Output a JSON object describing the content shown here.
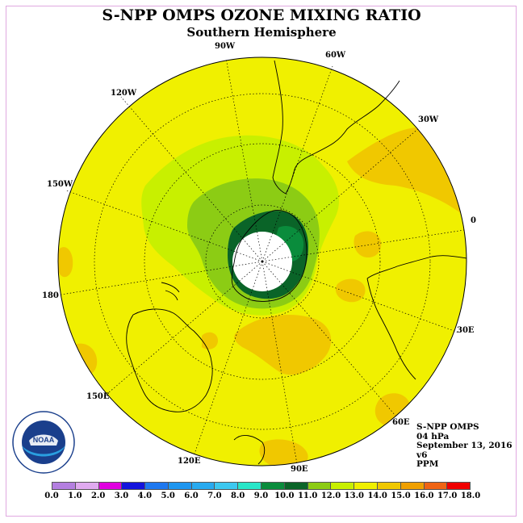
{
  "title": "S-NPP OMPS OZONE MIXING RATIO",
  "subtitle": "Southern Hemisphere",
  "longitude_labels": {
    "lbl_90w": "90W",
    "lbl_60w": "60W",
    "lbl_120w": "120W",
    "lbl_30w": "30W",
    "lbl_150w": "150W",
    "lbl_0": "0",
    "lbl_180": "180",
    "lbl_30e": "30E",
    "lbl_150e": "150E",
    "lbl_60e": "60E",
    "lbl_120e": "120E",
    "lbl_90e": "90E"
  },
  "info": {
    "instrument": "S-NPP OMPS",
    "level": "04 hPa",
    "date": "September 13, 2016",
    "version": "v6",
    "units": "PPM"
  },
  "logo": {
    "text": "NOAA",
    "ring_text": "NATIONAL OCEANIC AND ATMOSPHERIC ADMINISTRATION · U.S. DEPARTMENT OF COMMERCE"
  },
  "colorbar": {
    "ticks": [
      "0.0",
      "1.0",
      "2.0",
      "3.0",
      "4.0",
      "5.0",
      "6.0",
      "7.0",
      "8.0",
      "9.0",
      "10.0",
      "11.0",
      "12.0",
      "13.0",
      "14.0",
      "15.0",
      "16.0",
      "17.0",
      "18.0"
    ],
    "colors": [
      "#b47fe0",
      "#e0aaf0",
      "#e000e0",
      "#1414dc",
      "#1e78f0",
      "#1e96f0",
      "#28aaf0",
      "#3cc8f0",
      "#28e6c8",
      "#0a8c3c",
      "#0a6428",
      "#8ccc14",
      "#c8f000",
      "#f0f000",
      "#f0c800",
      "#f0a000",
      "#f06414",
      "#f00000",
      "#8c5a3c"
    ]
  },
  "map_colors": {
    "background": "#f0f000",
    "orange": "#f0c800",
    "light_green": "#c8f000",
    "green": "#8ccc14",
    "dark_green": "#0a6428",
    "mid_green": "#0a8c3c",
    "pole": "#ffffff"
  }
}
